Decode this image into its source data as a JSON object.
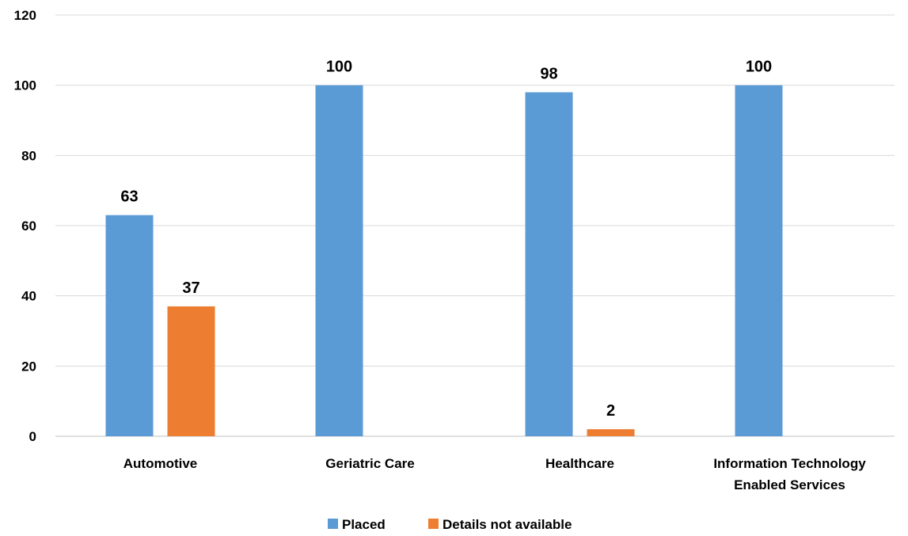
{
  "chart_data": {
    "type": "bar",
    "categories": [
      "Automotive",
      "Geriatric Care",
      "Healthcare",
      "Information Technology Enabled Services"
    ],
    "category_label_lines": [
      [
        "Automotive"
      ],
      [
        "Geriatric Care"
      ],
      [
        "Healthcare"
      ],
      [
        "Information Technology",
        "Enabled Services"
      ]
    ],
    "series": [
      {
        "name": "Placed",
        "color": "#5B9BD5",
        "values": [
          63,
          100,
          98,
          100
        ],
        "labels": [
          "63",
          "100",
          "98",
          "100"
        ]
      },
      {
        "name": "Details not available",
        "color": "#ED7D31",
        "values": [
          37,
          0,
          2,
          0
        ],
        "labels": [
          "37",
          "",
          "2",
          ""
        ]
      }
    ],
    "y_ticks": [
      "0",
      "20",
      "40",
      "60",
      "80",
      "100",
      "120"
    ],
    "ylim": [
      0,
      120
    ],
    "grid": true,
    "legend_position": "bottom-center",
    "title": "",
    "xlabel": "",
    "ylabel": ""
  }
}
